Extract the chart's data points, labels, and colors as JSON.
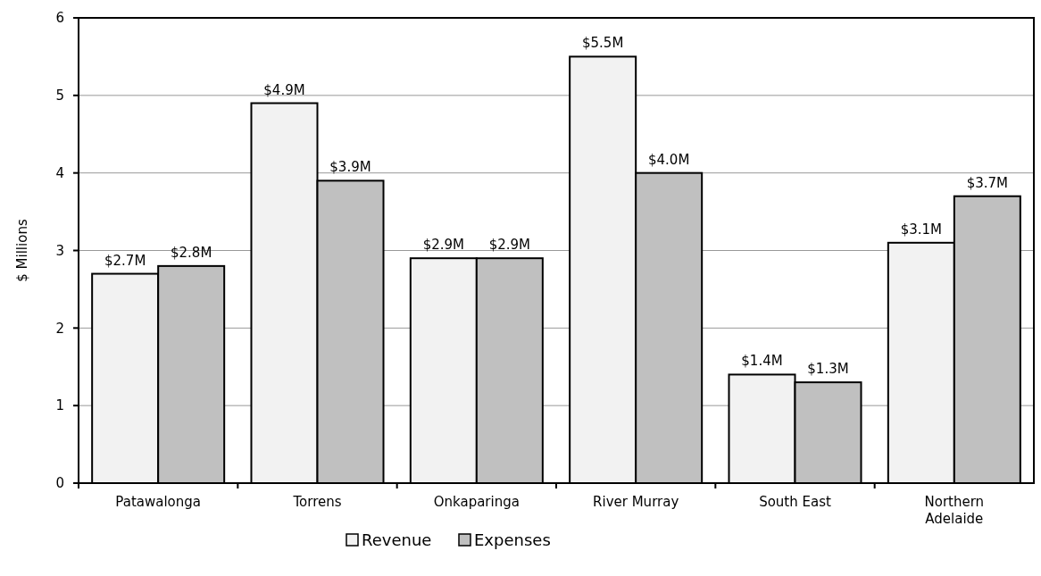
{
  "chart_data": {
    "type": "bar",
    "ylabel": "$ Millions",
    "categories": [
      "Patawalonga",
      "Torrens",
      "Onkaparinga",
      "River Murray",
      "South East",
      "Northern Adelaide"
    ],
    "series": [
      {
        "name": "Revenue",
        "color": "#f2f2f2",
        "values": [
          2.7,
          4.9,
          2.9,
          5.5,
          1.4,
          3.1
        ],
        "value_labels": [
          "$2.7M",
          "$4.9M",
          "$2.9M",
          "$5.5M",
          "$1.4M",
          "$3.1M"
        ]
      },
      {
        "name": "Expenses",
        "color": "#c0c0c0",
        "values": [
          2.8,
          3.9,
          2.9,
          4.0,
          1.3,
          3.7
        ],
        "value_labels": [
          "$2.8M",
          "$3.9M",
          "$2.9M",
          "$4.0M",
          "$1.3M",
          "$3.7M"
        ]
      }
    ],
    "ylim": [
      0,
      6
    ],
    "yticks": [
      0,
      1,
      2,
      3,
      4,
      5,
      6
    ],
    "grid": "y",
    "legend": "bottom"
  }
}
